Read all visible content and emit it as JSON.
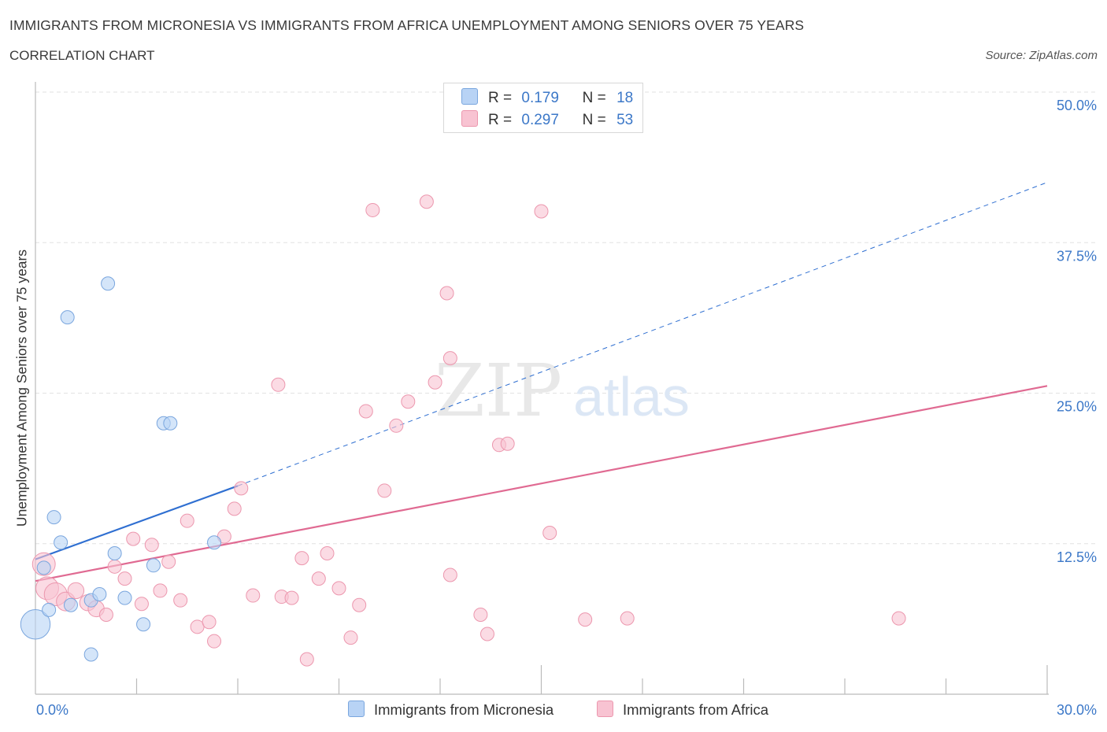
{
  "header": {
    "title": "IMMIGRANTS FROM MICRONESIA VS IMMIGRANTS FROM AFRICA UNEMPLOYMENT AMONG SENIORS OVER 75 YEARS",
    "subtitle": "CORRELATION CHART",
    "source": "Source: ZipAtlas.com"
  },
  "legend": {
    "micronesia": {
      "r_label": "R =",
      "r_value": "0.179",
      "n_label": "N =",
      "n_value": "18"
    },
    "africa": {
      "r_label": "R =",
      "r_value": "0.297",
      "n_label": "N =",
      "n_value": "53"
    }
  },
  "colors": {
    "micronesia_fill": "#b8d3f5",
    "micronesia_stroke": "#7aa6de",
    "micronesia_line": "#2f6fd1",
    "africa_fill": "#f8c3d2",
    "africa_stroke": "#ec97ae",
    "africa_line": "#e06a92",
    "tick_label": "#3c78c8"
  },
  "watermark": {
    "part1": "ZIP",
    "part2": "atlas"
  },
  "chart_data": {
    "type": "scatter",
    "title": "IMMIGRANTS FROM MICRONESIA VS IMMIGRANTS FROM AFRICA UNEMPLOYMENT AMONG SENIORS OVER 75 YEARS",
    "xlabel": "",
    "ylabel": "Unemployment Among Seniors over 75 years",
    "xlim": [
      0,
      30
    ],
    "ylim": [
      0,
      50
    ],
    "x_tick_labels": [
      "0.0%",
      "30.0%"
    ],
    "y_ticks": [
      12.5,
      25,
      37.5,
      50
    ],
    "y_tick_labels": [
      "12.5%",
      "25.0%",
      "37.5%",
      "50.0%"
    ],
    "grid": true,
    "series": [
      {
        "name": "Immigrants from Micronesia",
        "points": [
          {
            "x": 0.0,
            "y": 5.8,
            "s": 2.2
          },
          {
            "x": 0.25,
            "y": 10.5,
            "s": 1.0
          },
          {
            "x": 0.4,
            "y": 7.0,
            "s": 1.0
          },
          {
            "x": 0.55,
            "y": 14.7,
            "s": 1.0
          },
          {
            "x": 0.75,
            "y": 12.6,
            "s": 1.0
          },
          {
            "x": 0.95,
            "y": 31.3,
            "s": 1.0
          },
          {
            "x": 1.05,
            "y": 7.4,
            "s": 1.0
          },
          {
            "x": 1.65,
            "y": 3.3,
            "s": 1.0
          },
          {
            "x": 1.65,
            "y": 7.8,
            "s": 1.0
          },
          {
            "x": 1.9,
            "y": 8.3,
            "s": 1.0
          },
          {
            "x": 2.15,
            "y": 34.1,
            "s": 1.0
          },
          {
            "x": 2.35,
            "y": 11.7,
            "s": 1.0
          },
          {
            "x": 2.65,
            "y": 8.0,
            "s": 1.0
          },
          {
            "x": 3.2,
            "y": 5.8,
            "s": 1.0
          },
          {
            "x": 3.5,
            "y": 10.7,
            "s": 1.0
          },
          {
            "x": 3.8,
            "y": 22.5,
            "s": 1.0
          },
          {
            "x": 4.0,
            "y": 22.5,
            "s": 1.0
          },
          {
            "x": 5.3,
            "y": 12.6,
            "s": 1.0
          }
        ],
        "trend": {
          "x0": 0,
          "y0": 11.2,
          "x1": 6.0,
          "y1": 17.3,
          "dashed_to_x": 30,
          "dashed_to_y": 42.5
        }
      },
      {
        "name": "Immigrants from Africa",
        "points": [
          {
            "x": 0.25,
            "y": 10.8,
            "s": 1.7
          },
          {
            "x": 0.35,
            "y": 8.8,
            "s": 1.7
          },
          {
            "x": 0.6,
            "y": 8.3,
            "s": 1.7
          },
          {
            "x": 0.9,
            "y": 7.7,
            "s": 1.4
          },
          {
            "x": 1.2,
            "y": 8.6,
            "s": 1.2
          },
          {
            "x": 1.55,
            "y": 7.6,
            "s": 1.2
          },
          {
            "x": 1.8,
            "y": 7.1,
            "s": 1.2
          },
          {
            "x": 2.1,
            "y": 6.6,
            "s": 1.0
          },
          {
            "x": 2.35,
            "y": 10.6,
            "s": 1.0
          },
          {
            "x": 2.65,
            "y": 9.6,
            "s": 1.0
          },
          {
            "x": 2.9,
            "y": 12.9,
            "s": 1.0
          },
          {
            "x": 3.15,
            "y": 7.5,
            "s": 1.0
          },
          {
            "x": 3.45,
            "y": 12.4,
            "s": 1.0
          },
          {
            "x": 3.7,
            "y": 8.6,
            "s": 1.0
          },
          {
            "x": 3.95,
            "y": 11.0,
            "s": 1.0
          },
          {
            "x": 4.3,
            "y": 7.8,
            "s": 1.0
          },
          {
            "x": 4.5,
            "y": 14.4,
            "s": 1.0
          },
          {
            "x": 4.8,
            "y": 5.6,
            "s": 1.0
          },
          {
            "x": 5.15,
            "y": 6.0,
            "s": 1.0
          },
          {
            "x": 5.3,
            "y": 4.4,
            "s": 1.0
          },
          {
            "x": 5.6,
            "y": 13.1,
            "s": 1.0
          },
          {
            "x": 5.9,
            "y": 15.4,
            "s": 1.0
          },
          {
            "x": 6.1,
            "y": 17.1,
            "s": 1.0
          },
          {
            "x": 6.45,
            "y": 8.2,
            "s": 1.0
          },
          {
            "x": 7.2,
            "y": 25.7,
            "s": 1.0
          },
          {
            "x": 7.3,
            "y": 8.1,
            "s": 1.0
          },
          {
            "x": 7.6,
            "y": 8.0,
            "s": 1.0
          },
          {
            "x": 7.9,
            "y": 11.3,
            "s": 1.0
          },
          {
            "x": 8.05,
            "y": 2.9,
            "s": 1.0
          },
          {
            "x": 8.4,
            "y": 9.6,
            "s": 1.0
          },
          {
            "x": 8.65,
            "y": 11.7,
            "s": 1.0
          },
          {
            "x": 9.0,
            "y": 8.8,
            "s": 1.0
          },
          {
            "x": 9.35,
            "y": 4.7,
            "s": 1.0
          },
          {
            "x": 9.6,
            "y": 7.4,
            "s": 1.0
          },
          {
            "x": 9.8,
            "y": 23.5,
            "s": 1.0
          },
          {
            "x": 10.0,
            "y": 40.2,
            "s": 1.0
          },
          {
            "x": 10.35,
            "y": 16.9,
            "s": 1.0
          },
          {
            "x": 10.7,
            "y": 22.3,
            "s": 1.0
          },
          {
            "x": 11.05,
            "y": 24.3,
            "s": 1.0
          },
          {
            "x": 11.6,
            "y": 40.9,
            "s": 1.0
          },
          {
            "x": 11.85,
            "y": 25.9,
            "s": 1.0
          },
          {
            "x": 12.2,
            "y": 33.3,
            "s": 1.0
          },
          {
            "x": 12.3,
            "y": 9.9,
            "s": 1.0
          },
          {
            "x": 12.3,
            "y": 27.9,
            "s": 1.0
          },
          {
            "x": 13.2,
            "y": 6.6,
            "s": 1.0
          },
          {
            "x": 13.4,
            "y": 5.0,
            "s": 1.0
          },
          {
            "x": 13.75,
            "y": 20.7,
            "s": 1.0
          },
          {
            "x": 14.0,
            "y": 20.8,
            "s": 1.0
          },
          {
            "x": 15.0,
            "y": 40.1,
            "s": 1.0
          },
          {
            "x": 15.25,
            "y": 13.4,
            "s": 1.0
          },
          {
            "x": 16.3,
            "y": 6.2,
            "s": 1.0
          },
          {
            "x": 17.55,
            "y": 6.3,
            "s": 1.0
          },
          {
            "x": 25.6,
            "y": 6.3,
            "s": 1.0
          }
        ],
        "trend": {
          "x0": 0,
          "y0": 9.4,
          "x1": 30,
          "y1": 25.6
        }
      }
    ]
  }
}
